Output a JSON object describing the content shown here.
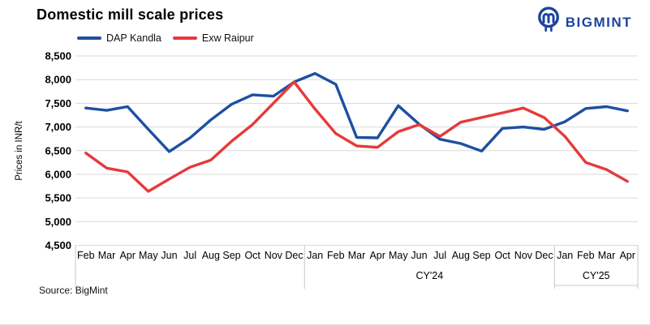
{
  "header": {
    "title": "Domestic mill scale prices",
    "brand": "BIGMINT"
  },
  "legend": [
    {
      "label": "DAP Kandla",
      "color": "#1f4fa2"
    },
    {
      "label": "Exw Raipur",
      "color": "#e6393a"
    }
  ],
  "source": "Source: BigMint",
  "colors": {
    "brand_blue": "#1c449c",
    "series_blue": "#1f4fa2",
    "series_red": "#e6393a",
    "gridline": "#d9d9d9",
    "axis_box": "#c8c8c8",
    "text": "#000000"
  },
  "chart_data": {
    "type": "line",
    "title": "Domestic mill scale prices",
    "xlabel": "",
    "ylabel": "Prices in INR/t",
    "ylim": [
      4500,
      8500
    ],
    "ytick_step": 500,
    "ytick_labels": [
      "8,500",
      "8,000",
      "7,500",
      "7,000",
      "6,500",
      "6,000",
      "5,500",
      "5,000",
      "4,500"
    ],
    "grid": "horizontal",
    "legend_position": "top",
    "categories": [
      "Feb",
      "Mar",
      "Apr",
      "May",
      "Jun",
      "Jul",
      "Aug",
      "Sep",
      "Oct",
      "Nov",
      "Dec",
      "Jan",
      "Feb",
      "Mar",
      "Apr",
      "May",
      "Jun",
      "Jul",
      "Aug",
      "Sep",
      "Oct",
      "Nov",
      "Dec",
      "Jan",
      "Feb",
      "Mar",
      "Apr"
    ],
    "groups": [
      {
        "label": "",
        "months": 11
      },
      {
        "label": "CY'24",
        "months": 12
      },
      {
        "label": "CY'25",
        "months": 4
      }
    ],
    "series": [
      {
        "name": "DAP Kandla",
        "color": "#1f4fa2",
        "values": [
          7400,
          7350,
          7430,
          6950,
          6480,
          6770,
          7150,
          7480,
          7680,
          7650,
          7950,
          8130,
          7900,
          6780,
          6770,
          7450,
          7060,
          6740,
          6650,
          6490,
          6970,
          7000,
          6950,
          7110,
          7390,
          7430,
          7340
        ]
      },
      {
        "name": "Exw Raipur",
        "color": "#e6393a",
        "values": [
          6450,
          6130,
          6050,
          5640,
          5900,
          6150,
          6300,
          6700,
          7050,
          7500,
          7950,
          7380,
          6860,
          6600,
          6570,
          6900,
          7050,
          6800,
          7100,
          7200,
          7300,
          7400,
          7200,
          6800,
          6250,
          6100,
          5850
        ]
      }
    ]
  }
}
